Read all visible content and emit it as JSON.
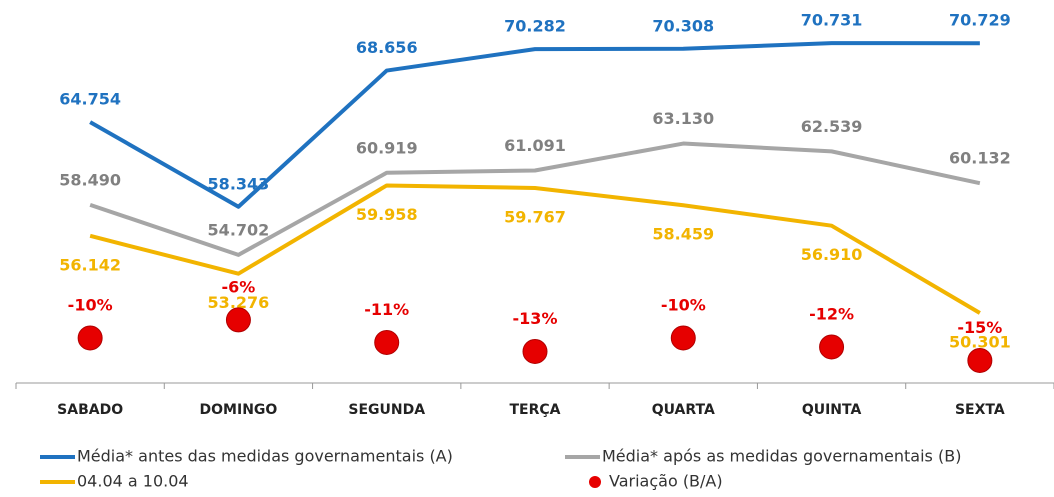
{
  "chart_data": {
    "type": "line",
    "categories": [
      "SABADO",
      "DOMINGO",
      "SEGUNDA",
      "TERÇA",
      "QUARTA",
      "QUINTA",
      "SEXTA"
    ],
    "ylim": [
      45000,
      74000
    ],
    "y2lim": [
      -20,
      65
    ],
    "legend": "bottom",
    "series": [
      {
        "name": "Média* antes das medidas governamentais (A)",
        "color": "#1f72c0",
        "values": [
          64754,
          58343,
          68656,
          70282,
          70308,
          70731,
          70729
        ],
        "value_labels": [
          "64.754",
          "58.343",
          "68.656",
          "70.282",
          "70.308",
          "70.731",
          "70.729"
        ]
      },
      {
        "name": "Média* após as medidas governamentais (B)",
        "color": "#a6a6a6",
        "values": [
          58490,
          54702,
          60919,
          61091,
          63130,
          62539,
          60132
        ],
        "value_labels": [
          "58.490",
          "54.702",
          "60.919",
          "61.091",
          "63.130",
          "62.539",
          "60.132"
        ]
      },
      {
        "name": "04.04 a 10.04",
        "color": "#f2b400",
        "values": [
          56142,
          53276,
          59958,
          59767,
          58459,
          56910,
          50301
        ],
        "value_labels": [
          "56.142",
          "53.276",
          "59.958",
          "59.767",
          "58.459",
          "56.910",
          "50.301"
        ]
      },
      {
        "name": "Variação (B/A)",
        "color": "#e60000",
        "axis": "y2",
        "marker": "dot",
        "values": [
          -10,
          -6,
          -11,
          -13,
          -10,
          -12,
          -15
        ],
        "value_labels": [
          "-10%",
          "-6%",
          "-11%",
          "-13%",
          "-10%",
          "-12%",
          "-15%"
        ]
      }
    ]
  }
}
